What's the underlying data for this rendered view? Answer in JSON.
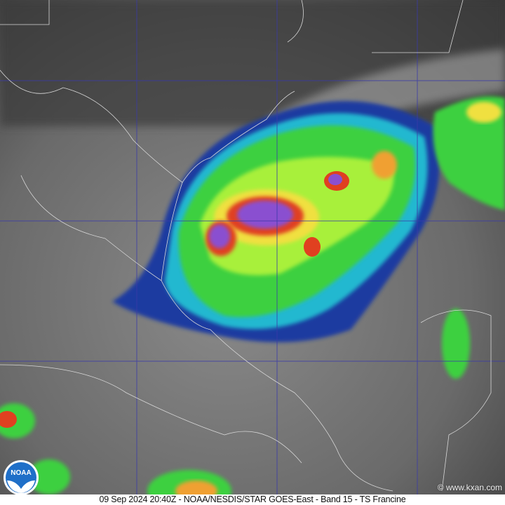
{
  "caption": "09 Sep 2024 20:40Z - NOAA/NESDIS/STAR GOES-East - Band 15 - TS Francine",
  "credit": "© www.kxan.com",
  "logo": {
    "text": "NOAA"
  },
  "colors": {
    "grid": "#3a3aa8",
    "borders": "#d8d8d8",
    "cold_cloud_top": "#8a4fd0",
    "caption_bg": "#ffffff"
  }
}
